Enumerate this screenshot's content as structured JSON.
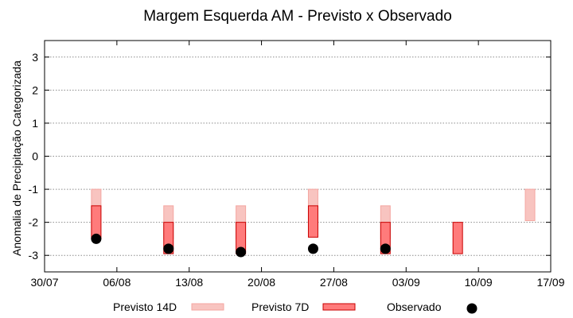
{
  "chart_data": {
    "type": "bar",
    "title": "Margem Esquerda AM - Previsto x Observado",
    "xlabel": "",
    "ylabel": "Anomalia de Precipitação Categorizada",
    "x_axis": {
      "type": "date",
      "range": [
        "2023-07-30",
        "2023-09-17"
      ],
      "ticks": [
        "2023-07-30",
        "2023-08-06",
        "2023-08-13",
        "2023-08-20",
        "2023-08-27",
        "2023-09-03",
        "2023-09-10",
        "2023-09-17"
      ],
      "tick_labels": [
        "30/07",
        "06/08",
        "13/08",
        "20/08",
        "27/08",
        "03/09",
        "10/09",
        "17/09"
      ]
    },
    "ylim": [
      -3.5,
      3.5
    ],
    "yticks": [
      3,
      2,
      1,
      0,
      -1,
      -2,
      -3
    ],
    "ytick_labels": [
      "3",
      "2",
      "1",
      "0",
      "-1",
      "-2",
      "-3"
    ],
    "grid": "horizontal dotted at y ticks",
    "legend_position": "bottom",
    "series": [
      {
        "name": "Previsto 14D",
        "kind": "floating-bar",
        "fill_color": "#f8c4c0",
        "edge_color": "#f4a6a1",
        "points": [
          {
            "date": "2023-08-04",
            "low": -2.5,
            "high": -1.0
          },
          {
            "date": "2023-08-11",
            "low": -2.5,
            "high": -1.5
          },
          {
            "date": "2023-08-18",
            "low": -2.5,
            "high": -1.5
          },
          {
            "date": "2023-08-25",
            "low": -2.0,
            "high": -1.0
          },
          {
            "date": "2023-09-01",
            "low": -2.5,
            "high": -1.5
          },
          {
            "date": "2023-09-15",
            "low": -1.95,
            "high": -1.0
          }
        ]
      },
      {
        "name": "Previsto 7D",
        "kind": "floating-bar",
        "fill_color": "#ff7b7b",
        "edge_color": "#c80000",
        "points": [
          {
            "date": "2023-08-04",
            "low": -2.5,
            "high": -1.5
          },
          {
            "date": "2023-08-11",
            "low": -2.95,
            "high": -2.0
          },
          {
            "date": "2023-08-18",
            "low": -2.95,
            "high": -2.0
          },
          {
            "date": "2023-08-25",
            "low": -2.45,
            "high": -1.5
          },
          {
            "date": "2023-09-01",
            "low": -2.95,
            "high": -2.0
          },
          {
            "date": "2023-09-08",
            "low": -2.95,
            "high": -2.0
          }
        ]
      },
      {
        "name": "Observado",
        "kind": "scatter",
        "color": "#000000",
        "points": [
          {
            "date": "2023-08-04",
            "value": -2.5
          },
          {
            "date": "2023-08-11",
            "value": -2.8
          },
          {
            "date": "2023-08-18",
            "value": -2.9
          },
          {
            "date": "2023-08-25",
            "value": -2.8
          },
          {
            "date": "2023-09-01",
            "value": -2.8
          }
        ]
      }
    ]
  }
}
